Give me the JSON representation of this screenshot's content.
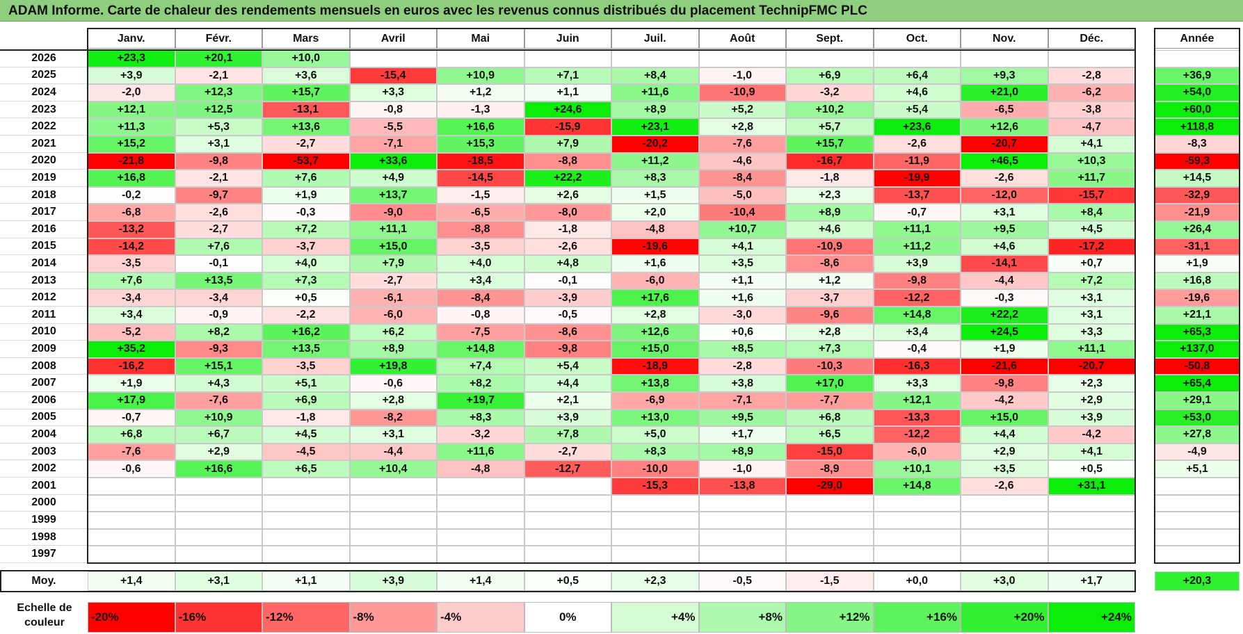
{
  "title": "ADAM Informe. Carte de chaleur des rendements mensuels en euros avec les revenus connus distribués du placement TechnipFMC PLC",
  "months": [
    "Janv.",
    "Févr.",
    "Mars",
    "Avril",
    "Mai",
    "Juin",
    "Juil.",
    "Août",
    "Sept.",
    "Oct.",
    "Nov.",
    "Déc."
  ],
  "year_header": "Année",
  "avg_label": "Moy.",
  "scale_label": "Echelle de couleur",
  "chart_data": {
    "type": "heatmap",
    "title": "ADAM Informe. Carte de chaleur des rendements mensuels en euros avec les revenus connus distribués du placement TechnipFMC PLC",
    "columns": [
      "Janv.",
      "Févr.",
      "Mars",
      "Avril",
      "Mai",
      "Juin",
      "Juil.",
      "Août",
      "Sept.",
      "Oct.",
      "Nov.",
      "Déc."
    ],
    "rows": [
      {
        "year": "2026",
        "values": [
          23.3,
          20.1,
          10.0,
          null,
          null,
          null,
          null,
          null,
          null,
          null,
          null,
          null
        ],
        "annual": null
      },
      {
        "year": "2025",
        "values": [
          3.9,
          -2.1,
          3.6,
          -15.4,
          10.9,
          7.1,
          8.4,
          -1.0,
          6.9,
          6.4,
          9.3,
          -2.8
        ],
        "annual": 36.9
      },
      {
        "year": "2024",
        "values": [
          -2.0,
          12.3,
          15.7,
          3.3,
          1.2,
          1.1,
          11.6,
          -10.9,
          -3.2,
          4.6,
          21.0,
          -6.2
        ],
        "annual": 54.0
      },
      {
        "year": "2023",
        "values": [
          12.1,
          12.5,
          -13.1,
          -0.8,
          -1.3,
          24.6,
          8.9,
          5.2,
          10.2,
          5.4,
          -6.5,
          -3.8
        ],
        "annual": 60.0
      },
      {
        "year": "2022",
        "values": [
          11.3,
          5.3,
          13.6,
          -5.5,
          16.6,
          -15.9,
          23.1,
          2.8,
          5.7,
          23.6,
          12.6,
          -4.7
        ],
        "annual": 118.8
      },
      {
        "year": "2021",
        "values": [
          15.2,
          3.1,
          -2.7,
          -7.1,
          15.3,
          7.9,
          -20.2,
          -7.6,
          15.7,
          -2.6,
          -20.7,
          4.1
        ],
        "annual": -8.3
      },
      {
        "year": "2020",
        "values": [
          -21.8,
          -9.8,
          -53.7,
          33.6,
          -18.5,
          -8.8,
          11.2,
          -4.6,
          -16.7,
          -11.9,
          46.5,
          10.3
        ],
        "annual": -59.3
      },
      {
        "year": "2019",
        "values": [
          16.8,
          -2.1,
          7.6,
          4.9,
          -14.5,
          22.2,
          8.3,
          -8.4,
          -1.8,
          -19.9,
          -2.6,
          11.7
        ],
        "annual": 14.5
      },
      {
        "year": "2018",
        "values": [
          -0.2,
          -9.7,
          1.9,
          13.7,
          -1.5,
          2.6,
          1.5,
          -5.0,
          2.3,
          -13.7,
          -12.0,
          -15.7
        ],
        "annual": -32.9
      },
      {
        "year": "2017",
        "values": [
          -6.8,
          -2.6,
          -0.3,
          -9.0,
          -6.5,
          -8.0,
          2.0,
          -10.4,
          8.9,
          -0.7,
          3.1,
          8.4
        ],
        "annual": -21.9
      },
      {
        "year": "2016",
        "values": [
          -13.2,
          -2.7,
          7.2,
          11.1,
          -8.8,
          -1.8,
          -4.8,
          10.7,
          4.6,
          11.1,
          9.5,
          4.5
        ],
        "annual": 26.4
      },
      {
        "year": "2015",
        "values": [
          -14.2,
          7.6,
          -3.7,
          15.0,
          -3.5,
          -2.6,
          -19.6,
          4.1,
          -10.9,
          11.2,
          4.6,
          -17.2
        ],
        "annual": -31.1
      },
      {
        "year": "2014",
        "values": [
          -3.5,
          -0.1,
          4.0,
          7.9,
          4.0,
          4.8,
          1.6,
          3.5,
          -8.6,
          3.9,
          -14.1,
          0.7
        ],
        "annual": 1.9
      },
      {
        "year": "2013",
        "values": [
          7.6,
          13.5,
          7.3,
          -2.7,
          3.4,
          -0.1,
          -6.0,
          1.1,
          1.2,
          -9.8,
          -4.4,
          7.2
        ],
        "annual": 16.8
      },
      {
        "year": "2012",
        "values": [
          -3.4,
          -3.4,
          0.5,
          -6.1,
          -8.4,
          -3.9,
          17.6,
          1.6,
          -3.7,
          -12.2,
          -0.3,
          3.1
        ],
        "annual": -19.6
      },
      {
        "year": "2011",
        "values": [
          3.4,
          -0.9,
          -2.2,
          -6.0,
          -0.8,
          -0.5,
          2.8,
          -3.0,
          -9.6,
          14.8,
          22.2,
          3.1
        ],
        "annual": 21.1
      },
      {
        "year": "2010",
        "values": [
          -5.2,
          8.2,
          16.2,
          6.2,
          -7.5,
          -8.6,
          12.6,
          0.6,
          2.8,
          3.4,
          24.5,
          3.3
        ],
        "annual": 65.3
      },
      {
        "year": "2009",
        "values": [
          35.2,
          -9.3,
          13.5,
          8.9,
          14.8,
          -9.8,
          15.0,
          8.5,
          7.3,
          -0.4,
          1.9,
          11.1
        ],
        "annual": 137.0
      },
      {
        "year": "2008",
        "values": [
          -16.2,
          15.1,
          -3.5,
          19.8,
          7.4,
          5.4,
          -18.9,
          -2.8,
          -10.3,
          -16.3,
          -21.6,
          -20.7
        ],
        "annual": -50.8
      },
      {
        "year": "2007",
        "values": [
          1.9,
          4.3,
          5.1,
          -0.6,
          8.2,
          4.4,
          13.8,
          3.8,
          17.0,
          3.3,
          -9.8,
          2.3
        ],
        "annual": 65.4
      },
      {
        "year": "2006",
        "values": [
          17.9,
          -7.6,
          6.9,
          2.8,
          19.7,
          2.1,
          -6.9,
          -7.1,
          -7.7,
          12.1,
          -4.2,
          2.9
        ],
        "annual": 29.1
      },
      {
        "year": "2005",
        "values": [
          -0.7,
          10.9,
          -1.8,
          -8.2,
          8.3,
          3.9,
          13.0,
          9.5,
          6.8,
          -13.3,
          15.0,
          3.9
        ],
        "annual": 53.0
      },
      {
        "year": "2004",
        "values": [
          6.8,
          6.7,
          4.5,
          3.1,
          -3.2,
          7.8,
          5.0,
          1.7,
          6.5,
          -12.2,
          4.4,
          -4.2
        ],
        "annual": 27.8
      },
      {
        "year": "2003",
        "values": [
          -7.6,
          2.9,
          -4.5,
          -4.4,
          11.6,
          -2.7,
          8.3,
          8.9,
          -15.0,
          -6.0,
          2.9,
          4.1
        ],
        "annual": -4.9
      },
      {
        "year": "2002",
        "values": [
          -0.6,
          16.6,
          6.5,
          10.4,
          -4.8,
          -12.7,
          -10.0,
          -1.0,
          -8.9,
          10.1,
          3.5,
          0.5
        ],
        "annual": 5.1
      },
      {
        "year": "2001",
        "values": [
          null,
          null,
          null,
          null,
          null,
          null,
          -15.3,
          -13.8,
          -29.0,
          14.8,
          -2.6,
          31.1
        ],
        "annual": null
      },
      {
        "year": "2000",
        "values": [
          null,
          null,
          null,
          null,
          null,
          null,
          null,
          null,
          null,
          null,
          null,
          null
        ],
        "annual": null
      },
      {
        "year": "1999",
        "values": [
          null,
          null,
          null,
          null,
          null,
          null,
          null,
          null,
          null,
          null,
          null,
          null
        ],
        "annual": null
      },
      {
        "year": "1998",
        "values": [
          null,
          null,
          null,
          null,
          null,
          null,
          null,
          null,
          null,
          null,
          null,
          null
        ],
        "annual": null
      },
      {
        "year": "1997",
        "values": [
          null,
          null,
          null,
          null,
          null,
          null,
          null,
          null,
          null,
          null,
          null,
          null
        ],
        "annual": null
      }
    ],
    "average": {
      "values": [
        1.4,
        3.1,
        1.1,
        3.9,
        1.4,
        0.5,
        2.3,
        -0.5,
        -1.5,
        -0.0,
        3.0,
        1.7
      ],
      "annual": 20.3
    },
    "color_scale": [
      {
        "label": "-20%",
        "value": -20,
        "color": "#ff0000"
      },
      {
        "label": "-16%",
        "value": -16,
        "color": "#ff3333"
      },
      {
        "label": "-12%",
        "value": -12,
        "color": "#ff6666"
      },
      {
        "label": "-8%",
        "value": -8,
        "color": "#ff9999"
      },
      {
        "label": "-4%",
        "value": -4,
        "color": "#ffcccc"
      },
      {
        "label": "0%",
        "value": 0,
        "color": "#ffffff"
      },
      {
        "label": "+4%",
        "value": 4,
        "color": "#d6fcd6"
      },
      {
        "label": "+8%",
        "value": 8,
        "color": "#adf9ad"
      },
      {
        "label": "+12%",
        "value": 12,
        "color": "#85f685"
      },
      {
        "label": "+16%",
        "value": 16,
        "color": "#5cf35c"
      },
      {
        "label": "+20%",
        "value": 20,
        "color": "#33f033"
      },
      {
        "label": "+24%",
        "value": 24,
        "color": "#0aee0a"
      }
    ]
  }
}
